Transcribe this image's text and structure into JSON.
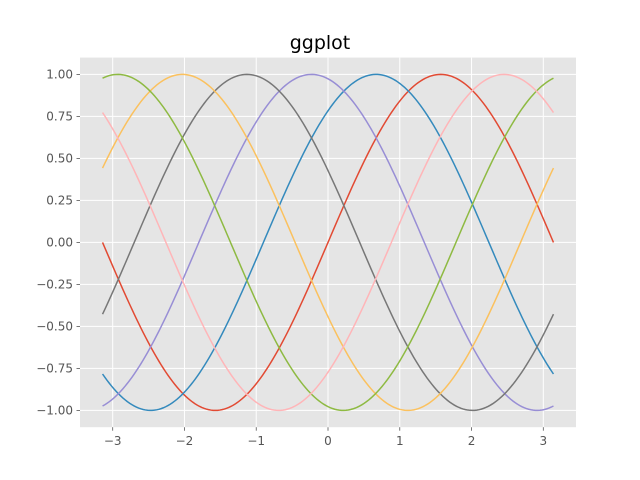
{
  "chart_data": {
    "type": "line",
    "title": "ggplot",
    "xlabel": "",
    "ylabel": "",
    "xlim": [
      -3.4557,
      3.4557
    ],
    "ylim": [
      -1.1,
      1.1
    ],
    "grid": true,
    "x_ticks": [
      -3,
      -2,
      -1,
      0,
      1,
      2,
      3
    ],
    "x_tick_labels": [
      "−3",
      "−2",
      "−1",
      "0",
      "1",
      "2",
      "3"
    ],
    "y_ticks": [
      -1.0,
      -0.75,
      -0.5,
      -0.25,
      0.0,
      0.25,
      0.5,
      0.75,
      1.0
    ],
    "y_tick_labels": [
      "−1.00",
      "−0.75",
      "−0.50",
      "−0.25",
      "0.00",
      "0.25",
      "0.50",
      "0.75",
      "1.00"
    ],
    "x_range": [
      -3.14159,
      3.14159
    ],
    "series": [
      {
        "function": "sin(x + 0.0)",
        "phase": 0.0,
        "color": "#E24A33"
      },
      {
        "function": "sin(x + 0.9)",
        "phase": 0.9,
        "color": "#348ABD"
      },
      {
        "function": "sin(x + 1.8)",
        "phase": 1.8,
        "color": "#988ED5"
      },
      {
        "function": "sin(x + 2.7)",
        "phase": 2.7,
        "color": "#777777"
      },
      {
        "function": "sin(x + 3.6)",
        "phase": 3.6,
        "color": "#FBC15E"
      },
      {
        "function": "sin(x + 4.5)",
        "phase": 4.5,
        "color": "#8EBA42"
      },
      {
        "function": "sin(x + 5.4)",
        "phase": 5.4,
        "color": "#FFB5B8"
      }
    ],
    "colors": {
      "plot_background": "#E5E5E5",
      "grid": "#FFFFFF",
      "text": "#555555"
    }
  }
}
